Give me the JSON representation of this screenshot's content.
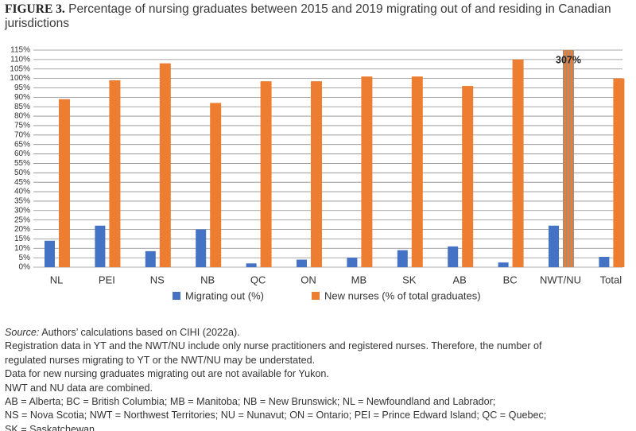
{
  "chart_data": {
    "type": "bar",
    "title_label": "FIGURE 3.",
    "title": "Percentage of nursing graduates between 2015 and 2019 migrating out of and residing in Canadian jurisdictions",
    "categories": [
      "NL",
      "PEI",
      "NS",
      "NB",
      "QC",
      "ON",
      "MB",
      "SK",
      "AB",
      "BC",
      "NWT/NU",
      "Total"
    ],
    "series": [
      {
        "name": "Migrating out (%)",
        "color": "#4472c4",
        "values": [
          14,
          22,
          8.5,
          20,
          2,
          4,
          5,
          9,
          11,
          2.5,
          22,
          5.5
        ]
      },
      {
        "name": "New nurses (% of total graduates)",
        "color": "#ed7d31",
        "values": [
          89,
          99,
          108,
          87,
          98.5,
          98.5,
          101,
          101,
          96,
          110,
          307,
          100
        ],
        "value_labels": [
          null,
          null,
          null,
          null,
          null,
          null,
          null,
          null,
          null,
          null,
          "307%",
          null
        ]
      }
    ],
    "ylim": [
      0,
      115
    ],
    "yticks": [
      {
        "value": 0,
        "label": "0%"
      },
      {
        "value": 5,
        "label": "5%"
      },
      {
        "value": 10,
        "label": "10%"
      },
      {
        "value": 15,
        "label": "15%"
      },
      {
        "value": 20,
        "label": "20%"
      },
      {
        "value": 25,
        "label": "25%"
      },
      {
        "value": 30,
        "label": "30%"
      },
      {
        "value": 35,
        "label": "35%"
      },
      {
        "value": 40,
        "label": "40%"
      },
      {
        "value": 45,
        "label": "45%"
      },
      {
        "value": 50,
        "label": "50%"
      },
      {
        "value": 55,
        "label": "55%"
      },
      {
        "value": 60,
        "label": "60%"
      },
      {
        "value": 65,
        "label": "65%"
      },
      {
        "value": 70,
        "label": "70%"
      },
      {
        "value": 75,
        "label": "75%"
      },
      {
        "value": 80,
        "label": "80%"
      },
      {
        "value": 85,
        "label": "85%"
      },
      {
        "value": 90,
        "label": "90%"
      },
      {
        "value": 95,
        "label": "95%"
      },
      {
        "value": 100,
        "label": "100%"
      },
      {
        "value": 105,
        "label": "105%"
      },
      {
        "value": 110,
        "label": "110%"
      },
      {
        "value": 115,
        "label": "115%"
      }
    ],
    "grid": true,
    "legend": "bottom"
  },
  "notes": {
    "source_label": "Source:",
    "source_text": "Authors’ calculations based on CIHI (2022a).",
    "lines": [
      "Registration data in YT and the NWT/NU include only nurse practitioners and registered nurses. Therefore, the number of",
      "regulated nurses migrating to YT or the NWT/NU may be understated.",
      "Data for new nursing graduates migrating out are not available for Yukon.",
      "NWT and NU data are combined.",
      "AB = Alberta; BC = British Columbia; MB = Manitoba; NB = New Brunswick; NL = Newfoundland and Labrador;",
      "NS = Nova Scotia; NWT = Northwest Territories; NU = Nunavut; ON = Ontario; PEI = Prince Edward Island; QC = Quebec;",
      "SK = Saskatchewan."
    ]
  }
}
